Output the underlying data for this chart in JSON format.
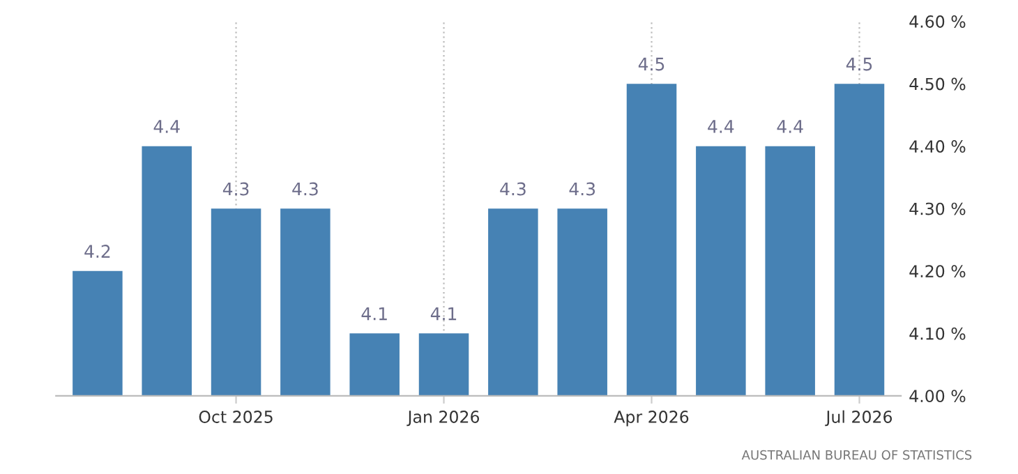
{
  "chart_data": {
    "type": "bar",
    "categories": [
      null,
      null,
      "Oct 2025",
      null,
      null,
      "Jan 2026",
      null,
      null,
      "Apr 2026",
      null,
      null,
      "Jul 2026"
    ],
    "values": [
      4.2,
      4.4,
      4.3,
      4.3,
      4.1,
      4.1,
      4.3,
      4.3,
      4.5,
      4.4,
      4.4,
      4.5
    ],
    "color": "#4682b4",
    "data_labels": true,
    "ylim": [
      4.0,
      4.6
    ],
    "yticks": [
      {
        "value": 4.0,
        "label": "4.00 %"
      },
      {
        "value": 4.1,
        "label": "4.10 %"
      },
      {
        "value": 4.2,
        "label": "4.20 %"
      },
      {
        "value": 4.3,
        "label": "4.30 %"
      },
      {
        "value": 4.4,
        "label": "4.40 %"
      },
      {
        "value": 4.5,
        "label": "4.50 %"
      },
      {
        "value": 4.6,
        "label": "4.60 %"
      }
    ],
    "grid": "x",
    "annotations": [
      "AUSTRALIAN BUREAU OF STATISTICS"
    ]
  }
}
